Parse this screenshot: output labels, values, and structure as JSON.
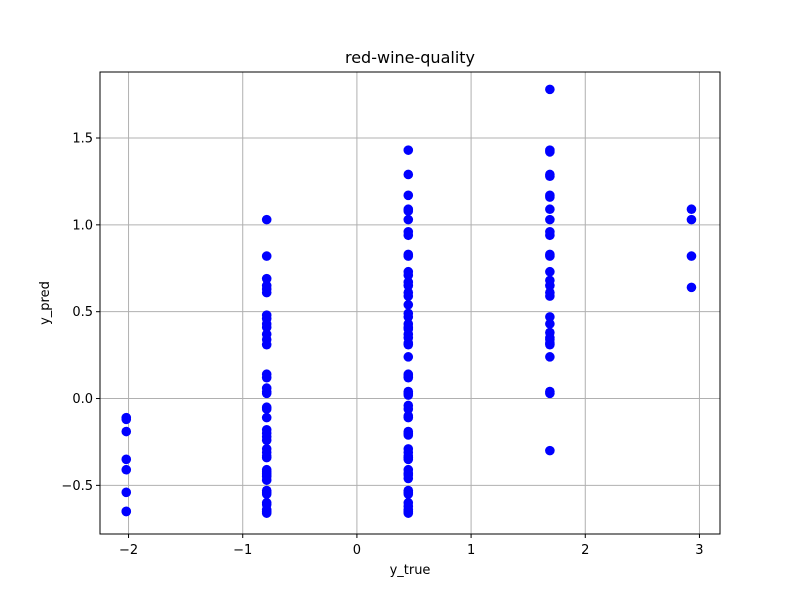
{
  "chart_data": {
    "type": "scatter",
    "title": "red-wine-quality",
    "xlabel": "y_true",
    "ylabel": "y_pred",
    "xlim": [
      -2.25,
      3.18
    ],
    "ylim": [
      -0.78,
      1.88
    ],
    "xticks": [
      -2,
      -1,
      0,
      1,
      2,
      3
    ],
    "xtick_labels": [
      "−2",
      "−1",
      "0",
      "1",
      "2",
      "3"
    ],
    "yticks": [
      -0.5,
      0.0,
      0.5,
      1.0,
      1.5
    ],
    "ytick_labels": [
      "−0.5",
      "0.0",
      "0.5",
      "1.0",
      "1.5"
    ],
    "grid": true,
    "marker_color": "#0000ff",
    "series": [
      {
        "x": [
          -2.02,
          -2.02,
          -2.02,
          -2.02,
          -2.02,
          -2.02,
          -2.02,
          -2.02
        ],
        "y": [
          -0.11,
          -0.12,
          -0.19,
          -0.35,
          -0.41,
          -0.54,
          -0.65,
          -0.65
        ]
      },
      {
        "x": [
          -0.79,
          -0.79,
          -0.79,
          -0.79,
          -0.79,
          -0.79,
          -0.79,
          -0.79,
          -0.79,
          -0.79,
          -0.79,
          -0.79,
          -0.79,
          -0.79,
          -0.79,
          -0.79,
          -0.79,
          -0.79,
          -0.79,
          -0.79,
          -0.79,
          -0.79,
          -0.79,
          -0.79,
          -0.79,
          -0.79,
          -0.79,
          -0.79,
          -0.79,
          -0.79,
          -0.79,
          -0.79,
          -0.79,
          -0.79,
          -0.79,
          -0.79,
          -0.79,
          -0.79,
          -0.79,
          -0.79,
          -0.79,
          -0.79,
          -0.79,
          -0.79
        ],
        "y": [
          1.03,
          0.82,
          0.69,
          0.65,
          0.63,
          0.61,
          0.48,
          0.46,
          0.43,
          0.41,
          0.37,
          0.34,
          0.31,
          0.14,
          0.12,
          0.06,
          0.04,
          0.03,
          -0.05,
          -0.06,
          -0.11,
          -0.18,
          -0.2,
          -0.22,
          -0.24,
          -0.29,
          -0.31,
          -0.33,
          -0.34,
          -0.41,
          -0.42,
          -0.43,
          -0.44,
          -0.45,
          -0.47,
          -0.53,
          -0.54,
          -0.55,
          -0.6,
          -0.61,
          -0.64,
          -0.65,
          -0.65,
          -0.66
        ]
      },
      {
        "x": [
          0.45,
          0.45,
          0.45,
          0.45,
          0.45,
          0.45,
          0.45,
          0.45,
          0.45,
          0.45,
          0.45,
          0.45,
          0.45,
          0.45,
          0.45,
          0.45,
          0.45,
          0.45,
          0.45,
          0.45,
          0.45,
          0.45,
          0.45,
          0.45,
          0.45,
          0.45,
          0.45,
          0.45,
          0.45,
          0.45,
          0.45,
          0.45,
          0.45,
          0.45,
          0.45,
          0.45,
          0.45,
          0.45,
          0.45,
          0.45,
          0.45,
          0.45,
          0.45,
          0.45,
          0.45,
          0.45,
          0.45,
          0.45,
          0.45,
          0.45,
          0.45,
          0.45,
          0.45,
          0.45,
          0.45,
          0.45,
          0.45,
          0.45
        ],
        "y": [
          1.43,
          1.29,
          1.17,
          1.09,
          1.08,
          1.03,
          0.96,
          0.94,
          0.83,
          0.82,
          0.73,
          0.71,
          0.67,
          0.65,
          0.61,
          0.59,
          0.54,
          0.49,
          0.47,
          0.43,
          0.41,
          0.4,
          0.37,
          0.35,
          0.32,
          0.31,
          0.24,
          0.14,
          0.13,
          0.12,
          0.04,
          0.03,
          0.02,
          -0.04,
          -0.06,
          -0.1,
          -0.11,
          -0.19,
          -0.2,
          -0.21,
          -0.29,
          -0.31,
          -0.33,
          -0.34,
          -0.35,
          -0.41,
          -0.43,
          -0.44,
          -0.46,
          -0.53,
          -0.54,
          -0.55,
          -0.6,
          -0.62,
          -0.64,
          -0.65,
          -0.65,
          -0.66
        ]
      },
      {
        "x": [
          1.69,
          1.69,
          1.69,
          1.69,
          1.69,
          1.69,
          1.69,
          1.69,
          1.69,
          1.69,
          1.69,
          1.69,
          1.69,
          1.69,
          1.69,
          1.69,
          1.69,
          1.69,
          1.69,
          1.69,
          1.69,
          1.69,
          1.69,
          1.69,
          1.69,
          1.69,
          1.69,
          1.69,
          1.69
        ],
        "y": [
          1.78,
          1.43,
          1.29,
          1.17,
          1.09,
          1.03,
          0.96,
          0.94,
          0.83,
          0.82,
          0.73,
          0.68,
          0.65,
          0.61,
          0.59,
          0.47,
          0.43,
          0.38,
          0.35,
          0.32,
          0.31,
          0.24,
          0.04,
          0.03,
          -0.3,
          1.28,
          1.42,
          1.16,
          0.34
        ]
      },
      {
        "x": [
          2.93,
          2.93,
          2.93,
          2.93
        ],
        "y": [
          1.09,
          1.03,
          0.82,
          0.64
        ]
      }
    ]
  }
}
